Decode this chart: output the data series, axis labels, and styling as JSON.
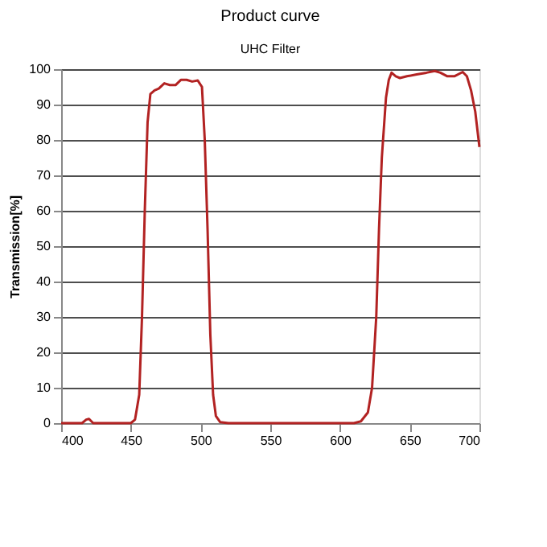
{
  "chart_data": {
    "type": "line",
    "title": "Product curve",
    "subtitle": "UHC Filter",
    "ylabel": "Transmission[%]",
    "x": [
      400,
      415,
      418,
      420,
      423,
      450,
      453,
      456,
      458,
      460,
      462,
      464,
      467,
      470,
      474,
      478,
      482,
      486,
      490,
      494,
      498,
      501,
      503,
      505,
      507,
      509,
      511,
      514,
      520,
      610,
      615,
      620,
      623,
      626,
      628,
      630,
      633,
      635,
      637,
      640,
      643,
      648,
      655,
      662,
      668,
      672,
      677,
      682,
      688,
      691,
      694,
      697,
      700
    ],
    "series": [
      {
        "color": "#b22222",
        "values": [
          0,
          0,
          1,
          1.2,
          0,
          0,
          1,
          8,
          30,
          60,
          85,
          93,
          94,
          94.5,
          96,
          95.5,
          95.5,
          97,
          97,
          96.5,
          96.8,
          95,
          80,
          55,
          25,
          8,
          2,
          0.3,
          0,
          0,
          0.5,
          3,
          10,
          30,
          55,
          75,
          92,
          97,
          99,
          98,
          97.5,
          98,
          98.5,
          99,
          99.5,
          99,
          98,
          98,
          99.2,
          98,
          94,
          88,
          78
        ]
      }
    ],
    "xlim": [
      400,
      700
    ],
    "xticks": [
      400,
      450,
      500,
      550,
      600,
      650,
      700
    ],
    "ylim": [
      0,
      100
    ],
    "yticks": [
      0,
      10,
      20,
      30,
      40,
      50,
      60,
      70,
      80,
      90,
      100
    ],
    "grid": "y",
    "marker": "none",
    "line_style": "solid"
  }
}
